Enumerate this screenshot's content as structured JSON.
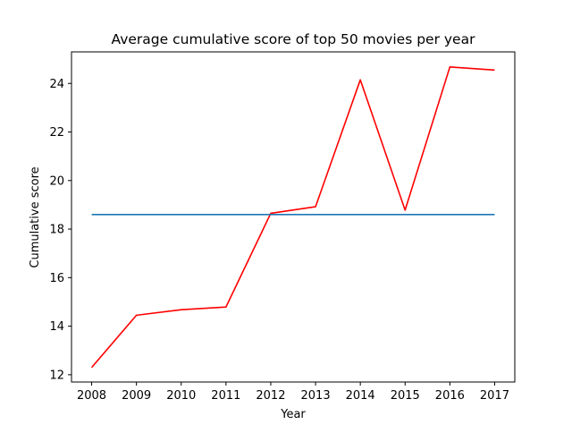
{
  "chart_data": {
    "type": "line",
    "title": "Average cumulative score of top 50 movies per year",
    "xlabel": "Year",
    "ylabel": "Cumulative score",
    "categories": [
      "2008",
      "2009",
      "2010",
      "2011",
      "2012",
      "2013",
      "2014",
      "2015",
      "2016",
      "2017"
    ],
    "x": [
      2008,
      2009,
      2010,
      2011,
      2012,
      2013,
      2014,
      2015,
      2016,
      2017
    ],
    "xlim": [
      2007.55,
      2017.45
    ],
    "ylim": [
      11.7,
      25.3
    ],
    "yticks": [
      12,
      14,
      16,
      18,
      20,
      22,
      24
    ],
    "grid": false,
    "legend": "none",
    "series": [
      {
        "values": [
          12.3,
          14.45,
          14.68,
          14.79,
          18.65,
          18.92,
          24.15,
          18.78,
          24.68,
          24.55
        ],
        "color": "#ff0000"
      },
      {
        "values": [
          18.6,
          18.6,
          18.6,
          18.6,
          18.6,
          18.6,
          18.6,
          18.6,
          18.6,
          18.6
        ],
        "color": "#1f77b4"
      }
    ]
  }
}
